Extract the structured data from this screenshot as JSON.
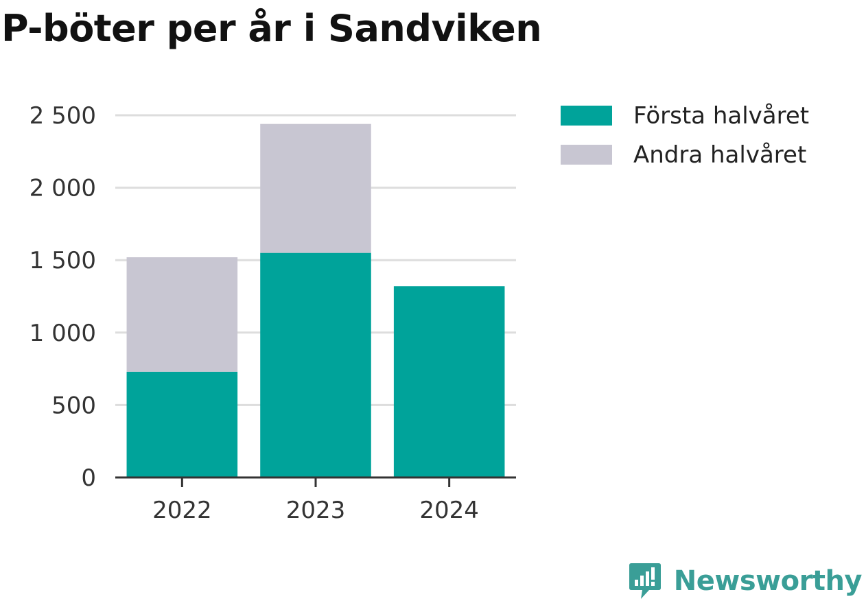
{
  "colors": {
    "first_half": "#00A39A",
    "second_half": "#C8C6D2",
    "grid": "#DDDDDD",
    "axis": "#333333",
    "brand": "#3A9E97"
  },
  "legend": {
    "placement": "top-right",
    "items": [
      {
        "label": "Första halvåret",
        "color": "#00A39A"
      },
      {
        "label": "Andra halvåret",
        "color": "#C8C6D2"
      }
    ]
  },
  "brand": {
    "name": "Newsworthy",
    "icon": "bar-chart-speech-bubble-icon"
  },
  "chart_data": {
    "type": "bar",
    "stacked": true,
    "title": "P-böter per år i Sandviken",
    "xlabel": "",
    "ylabel": "",
    "categories": [
      "2022",
      "2023",
      "2024"
    ],
    "series": [
      {
        "name": "Första halvåret",
        "values": [
          730,
          1550,
          1320
        ]
      },
      {
        "name": "Andra halvåret",
        "values": [
          790,
          890,
          0
        ]
      }
    ],
    "ylim": [
      0,
      2500
    ],
    "yticks": [
      0,
      500,
      1000,
      1500,
      2000,
      2500
    ],
    "ytick_labels": [
      "0",
      "500",
      "1 000",
      "1 500",
      "2 000",
      "2 500"
    ],
    "grid": true
  }
}
